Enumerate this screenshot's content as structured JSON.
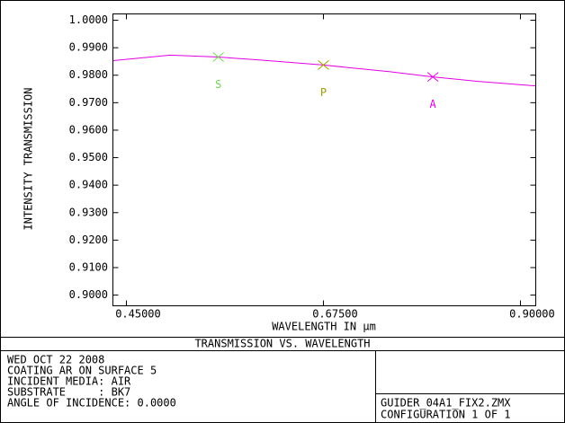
{
  "chart_data": {
    "type": "line",
    "title": "TRANSMISSION VS. WAVELENGTH",
    "xlabel": "WAVELENGTH IN μm",
    "ylabel": "INTENSITY TRANSMISSION",
    "x": [
      0.435,
      0.5,
      0.555,
      0.6,
      0.675,
      0.75,
      0.8,
      0.85,
      0.917
    ],
    "series": [
      {
        "color": "#e000e0",
        "values": [
          0.9853,
          0.9873,
          0.9866,
          0.9856,
          0.9837,
          0.9813,
          0.9794,
          0.9778,
          0.9761
        ]
      }
    ],
    "markers": [
      {
        "label": "S",
        "x": 0.555,
        "value": 0.9866,
        "color": "#70d850"
      },
      {
        "label": "P",
        "x": 0.675,
        "value": 0.9837,
        "color": "#a0a000"
      },
      {
        "label": "A",
        "x": 0.8,
        "value": 0.9794,
        "color": "#e000e0"
      }
    ],
    "xlim": [
      0.4346,
      0.9175
    ],
    "xticks": [
      {
        "value": 0.45,
        "label": "0.45000"
      },
      {
        "value": 0.675,
        "label": "0.67500"
      },
      {
        "value": 0.9,
        "label": "0.90000"
      }
    ],
    "ylim": [
      0.8961,
      1.0023
    ],
    "yticks": [
      {
        "value": 0.9,
        "label": "0.9000"
      },
      {
        "value": 0.91,
        "label": "0.9100"
      },
      {
        "value": 0.92,
        "label": "0.9200"
      },
      {
        "value": 0.93,
        "label": "0.9300"
      },
      {
        "value": 0.94,
        "label": "0.9400"
      },
      {
        "value": 0.95,
        "label": "0.9500"
      },
      {
        "value": 0.96,
        "label": "0.9600"
      },
      {
        "value": 0.97,
        "label": "0.9700"
      },
      {
        "value": 0.98,
        "label": "0.9800"
      },
      {
        "value": 0.99,
        "label": "0.9900"
      },
      {
        "value": 1.0,
        "label": "1.0000"
      }
    ]
  },
  "info": {
    "lines": [
      "WED OCT 22 2008",
      "COATING AR ON SURFACE 5",
      "INCIDENT MEDIA: AIR",
      "SUBSTRATE     : BK7",
      "ANGLE OF INCIDENCE: 0.0000"
    ],
    "file": "GUIDER_04A1_FIX2.ZMX",
    "configuration": "CONFIGURATION 1 OF 1"
  }
}
